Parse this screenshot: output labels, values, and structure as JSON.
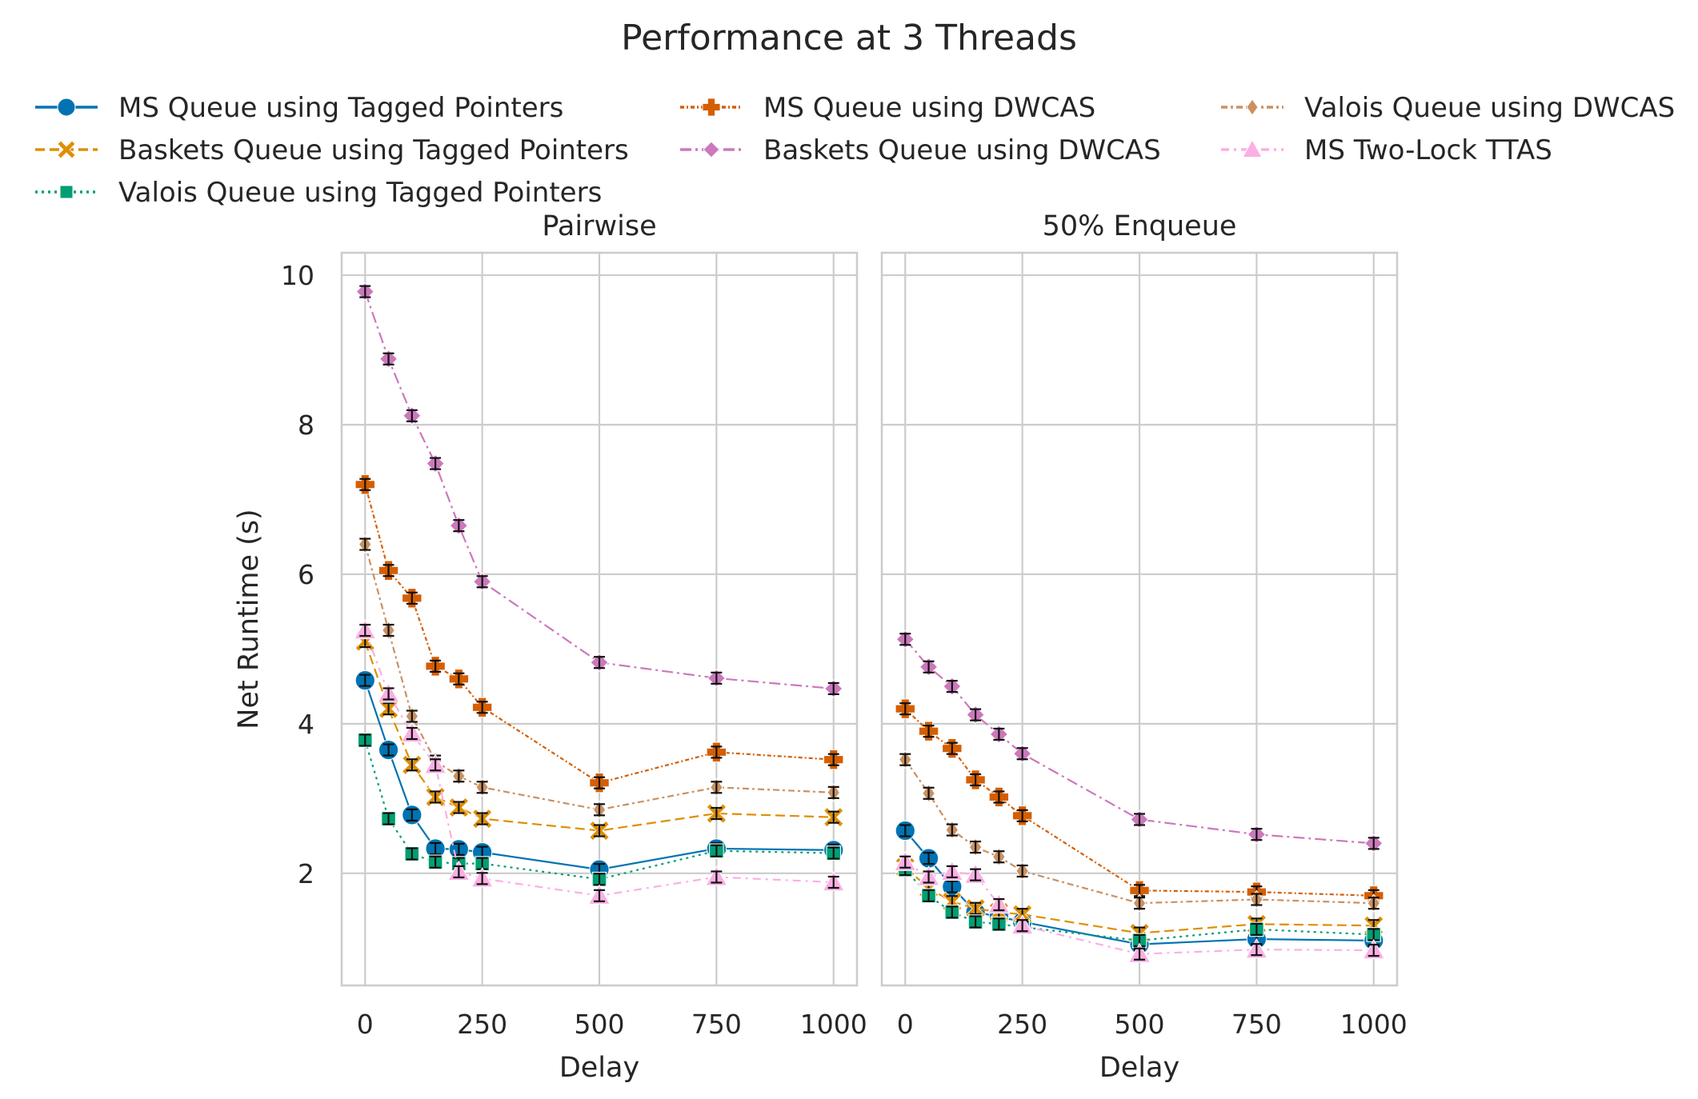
{
  "chart_data": {
    "type": "line",
    "title": "Performance at 3 Threads",
    "ylabel": "Net Runtime (s)",
    "ylim": [
      0.5,
      10.3
    ],
    "yticks": [
      2,
      4,
      6,
      8,
      10
    ],
    "xticks": [
      0,
      250,
      500,
      750,
      1000
    ],
    "xlim": [
      -50,
      1050
    ],
    "grid": true,
    "legend_placement": "top",
    "x": [
      0,
      50,
      100,
      150,
      200,
      250,
      500,
      750,
      1000
    ],
    "panels": [
      {
        "title": "Pairwise",
        "xlabel": "Delay",
        "series": [
          {
            "name": "MS Queue using Tagged Pointers",
            "values": [
              4.58,
              3.65,
              2.78,
              2.33,
              2.32,
              2.28,
              2.05,
              2.33,
              2.31
            ]
          },
          {
            "name": "Baskets Queue using Tagged Pointers",
            "values": [
              5.1,
              4.2,
              3.45,
              3.02,
              2.88,
              2.73,
              2.57,
              2.8,
              2.75
            ]
          },
          {
            "name": "Valois Queue using Tagged Pointers",
            "values": [
              3.78,
              2.73,
              2.26,
              2.15,
              2.13,
              2.13,
              1.92,
              2.3,
              2.27
            ]
          },
          {
            "name": "MS Queue using DWCAS",
            "values": [
              7.2,
              6.05,
              5.68,
              4.77,
              4.6,
              4.22,
              3.21,
              3.62,
              3.52
            ]
          },
          {
            "name": "Baskets Queue using DWCAS",
            "values": [
              9.78,
              8.88,
              8.12,
              7.48,
              6.65,
              5.9,
              4.82,
              4.61,
              4.47
            ]
          },
          {
            "name": "Valois Queue using DWCAS",
            "values": [
              6.4,
              5.25,
              4.1,
              3.5,
              3.3,
              3.15,
              2.85,
              3.15,
              3.08
            ]
          },
          {
            "name": "MS Two-Lock TTAS",
            "values": [
              5.25,
              4.4,
              3.87,
              3.45,
              2.02,
              1.93,
              1.7,
              1.95,
              1.88
            ]
          }
        ]
      },
      {
        "title": "50% Enqueue",
        "xlabel": "Delay",
        "series": [
          {
            "name": "MS Queue using Tagged Pointers",
            "values": [
              2.57,
              2.2,
              1.82,
              1.48,
              1.42,
              1.35,
              1.05,
              1.12,
              1.1
            ]
          },
          {
            "name": "Baskets Queue using Tagged Pointers",
            "values": [
              2.08,
              1.8,
              1.62,
              1.53,
              1.48,
              1.45,
              1.2,
              1.32,
              1.3
            ]
          },
          {
            "name": "Valois Queue using Tagged Pointers",
            "values": [
              2.05,
              1.7,
              1.48,
              1.35,
              1.32,
              1.28,
              1.1,
              1.25,
              1.18
            ]
          },
          {
            "name": "MS Queue using DWCAS",
            "values": [
              4.2,
              3.9,
              3.67,
              3.25,
              3.02,
              2.77,
              1.77,
              1.75,
              1.7
            ]
          },
          {
            "name": "Baskets Queue using DWCAS",
            "values": [
              5.13,
              4.76,
              4.5,
              4.12,
              3.86,
              3.6,
              2.72,
              2.52,
              2.4
            ]
          },
          {
            "name": "Valois Queue using DWCAS",
            "values": [
              3.52,
              3.07,
              2.58,
              2.35,
              2.22,
              2.03,
              1.6,
              1.65,
              1.6
            ]
          },
          {
            "name": "MS Two-Lock TTAS",
            "values": [
              2.15,
              1.95,
              2.02,
              1.98,
              1.58,
              1.3,
              0.92,
              0.98,
              0.97
            ]
          }
        ]
      }
    ],
    "series_styles": [
      {
        "color": "#0173b2",
        "marker": "circle",
        "dash": "solid"
      },
      {
        "color": "#de8f05",
        "marker": "x",
        "dash": "dashed"
      },
      {
        "color": "#029e73",
        "marker": "square",
        "dash": "dotted"
      },
      {
        "color": "#d55e00",
        "marker": "plus",
        "dash": "dashdot-short"
      },
      {
        "color": "#cc78bc",
        "marker": "diamond",
        "dash": "dashdot"
      },
      {
        "color": "#ca9161",
        "marker": "thin-diamond",
        "dash": "dashdot-long"
      },
      {
        "color": "#fbafe4",
        "marker": "triangle",
        "dash": "dashdot-loose"
      }
    ]
  }
}
